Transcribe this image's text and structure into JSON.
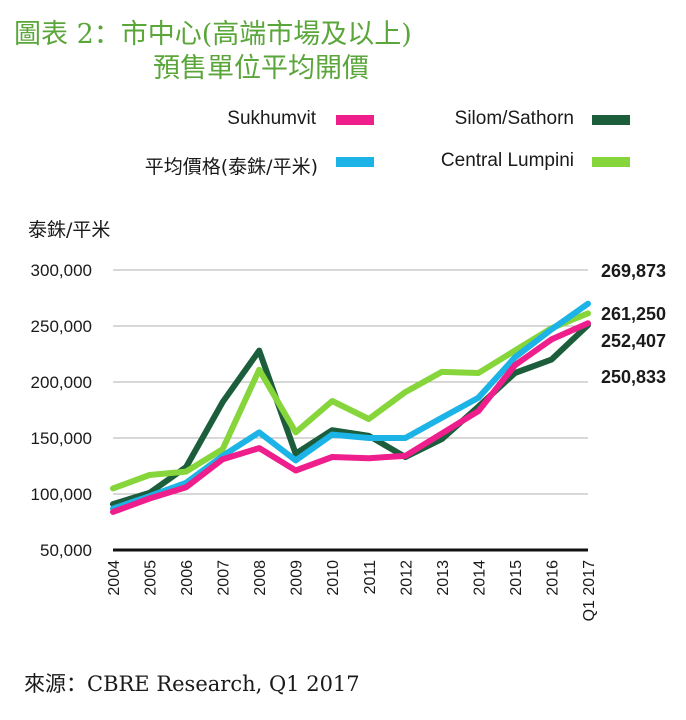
{
  "title": {
    "line1": "圖表 2：市中心(高端市場及以上)",
    "line2": "預售單位平均開價"
  },
  "unit_label": "泰銖/平米",
  "source": "來源：CBRE Research, Q1 2017",
  "colors": {
    "title": "#5aa63a",
    "Sukhumvit": "#ee1e8c",
    "Silom/Sathorn": "#1c5e3c",
    "平均價格(泰銖/平米)": "#1cb3e6",
    "Central Lumpini": "#86d53a"
  },
  "chart_data": {
    "type": "line",
    "categories": [
      "2004",
      "2005",
      "2006",
      "2007",
      "2008",
      "2009",
      "2010",
      "2011",
      "2012",
      "2013",
      "2014",
      "2015",
      "2016",
      "Q1 2017"
    ],
    "ylim": [
      50000,
      300000
    ],
    "yticks": [
      "50,000",
      "100,000",
      "150,000",
      "200,000",
      "250,000",
      "300,000"
    ],
    "ytick_values": [
      50000,
      100000,
      150000,
      200000,
      250000,
      300000
    ],
    "xlabel": "",
    "ylabel": "泰銖/平米",
    "legend_position": "top",
    "series": [
      {
        "name": "Sukhumvit",
        "values": [
          84000,
          96000,
          106000,
          131000,
          141000,
          121000,
          133000,
          132000,
          134000,
          154000,
          174000,
          215000,
          238000,
          252407
        ]
      },
      {
        "name": "Silom/Sathorn",
        "values": [
          91000,
          101000,
          124000,
          182000,
          228000,
          136000,
          157000,
          152000,
          133000,
          149000,
          178000,
          208000,
          220000,
          250833
        ]
      },
      {
        "name": "平均價格(泰銖/平米)",
        "values": [
          87000,
          98000,
          110000,
          134000,
          155000,
          130000,
          153000,
          150000,
          150000,
          168000,
          186000,
          222000,
          247000,
          269873
        ]
      },
      {
        "name": "Central Lumpini",
        "values": [
          105000,
          117000,
          120000,
          140000,
          211000,
          155000,
          183000,
          167000,
          191000,
          209000,
          208000,
          228000,
          248000,
          261250
        ]
      }
    ],
    "end_labels": [
      "269,873",
      "261,250",
      "252,407",
      "250,833"
    ]
  }
}
